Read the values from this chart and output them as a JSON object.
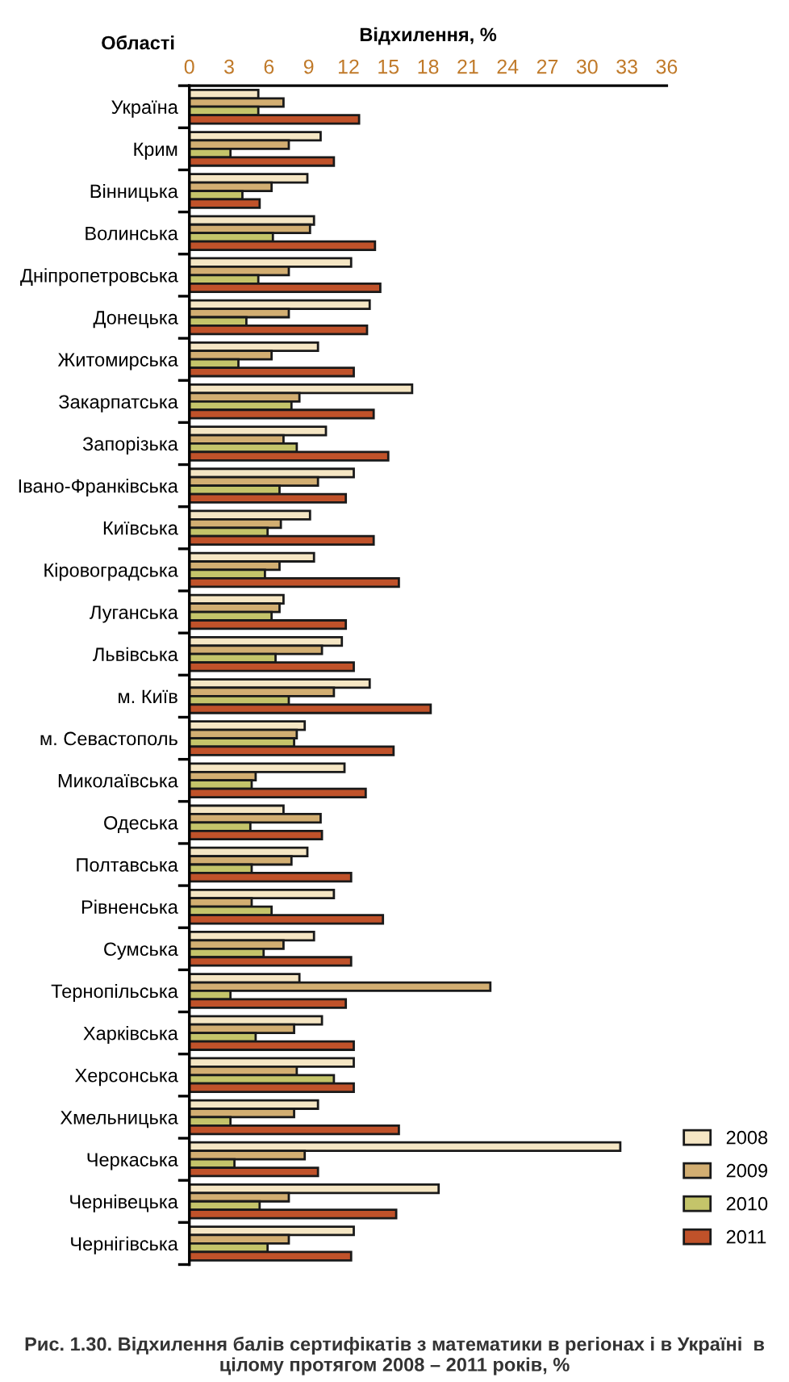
{
  "chart_data": {
    "type": "bar",
    "orientation": "horizontal",
    "title": "Рис. 1.30. Відхилення балів сертифікатів з математики в регіонах і в Україні  в цілому протягом 2008 – 2011 років, %",
    "xlabel": "Відхилення, %",
    "ylabel": "Області",
    "categories": [
      "Україна",
      "Крим",
      "Вінницька",
      "Волинська",
      "Дніпропетровська",
      "Донецька",
      "Житомирська",
      "Закарпатська",
      "Запорізька",
      "Івано-Франківська",
      "Київська",
      "Кіровоградська",
      "Луганська",
      "Львівська",
      "м. Київ",
      "м. Севастополь",
      "Миколаївська",
      "Одеська",
      "Полтавська",
      "Рівненська",
      "Сумська",
      "Тернопільська",
      "Харківська",
      "Херсонська",
      "Хмельницька",
      "Черкаська",
      "Чернівецька",
      "Чернігівська"
    ],
    "series": [
      {
        "name": "2008",
        "color": "#f5e6c4",
        "values": [
          5.2,
          9.9,
          8.9,
          9.4,
          12.2,
          13.6,
          9.7,
          16.8,
          10.3,
          12.4,
          9.1,
          9.4,
          7.1,
          11.5,
          13.6,
          8.7,
          11.7,
          7.1,
          8.9,
          10.9,
          9.4,
          8.3,
          10.0,
          12.4,
          9.7,
          32.5,
          18.8,
          12.4
        ]
      },
      {
        "name": "2009",
        "color": "#d2ae72",
        "values": [
          7.1,
          7.5,
          6.2,
          9.1,
          7.5,
          7.5,
          6.2,
          8.3,
          7.1,
          9.7,
          6.9,
          6.8,
          6.8,
          10.0,
          10.9,
          8.1,
          5.0,
          9.9,
          7.7,
          4.7,
          7.1,
          22.7,
          7.9,
          8.1,
          7.9,
          8.7,
          7.5,
          7.5
        ]
      },
      {
        "name": "2010",
        "color": "#c4c46a",
        "values": [
          5.2,
          3.1,
          4.0,
          6.3,
          5.2,
          4.3,
          3.7,
          7.7,
          8.1,
          6.8,
          5.9,
          5.7,
          6.2,
          6.5,
          7.5,
          7.9,
          4.7,
          4.6,
          4.7,
          6.2,
          5.6,
          3.1,
          5.0,
          10.9,
          3.1,
          3.4,
          5.3,
          5.9
        ]
      },
      {
        "name": "2011",
        "color": "#c0522a",
        "values": [
          12.8,
          10.9,
          5.3,
          14.0,
          14.4,
          13.4,
          12.4,
          13.9,
          15.0,
          11.8,
          13.9,
          15.8,
          11.8,
          12.4,
          18.2,
          15.4,
          13.3,
          10.0,
          12.2,
          14.6,
          12.2,
          11.8,
          12.4,
          12.4,
          15.8,
          9.7,
          15.6,
          12.2
        ]
      }
    ],
    "xlim": [
      0,
      36
    ],
    "xticks": [
      0,
      3,
      6,
      9,
      12,
      15,
      18,
      21,
      24,
      27,
      30,
      33,
      36
    ],
    "grid": false,
    "legend": "bottom right"
  }
}
